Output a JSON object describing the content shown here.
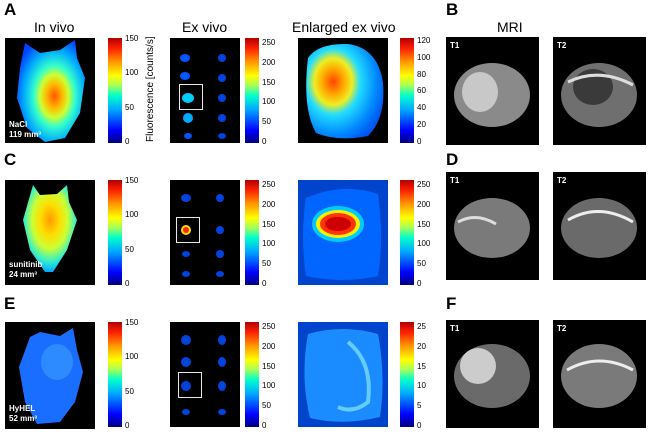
{
  "panels": {
    "A": "A",
    "B": "B",
    "C": "C",
    "D": "D",
    "E": "E",
    "F": "F"
  },
  "headers": {
    "in_vivo": "In vivo",
    "ex_vivo": "Ex vivo",
    "enlarged": "Enlarged ex vivo",
    "mri": "MRI"
  },
  "axis_label": "Fluorescence [counts/s]",
  "rows": [
    {
      "caption_line1": "NaCl",
      "caption_line2": "119 mm³",
      "invivo_ticks": [
        "150",
        "100",
        "50",
        "0"
      ],
      "exvivo_ticks": [
        "250",
        "200",
        "150",
        "100",
        "50",
        "0"
      ],
      "enlarged_ticks": [
        "120",
        "100",
        "80",
        "60",
        "40",
        "20",
        "0"
      ],
      "mri_t1": "T1",
      "mri_t2": "T2"
    },
    {
      "caption_line1": "sunitinib",
      "caption_line2": "24 mm³",
      "invivo_ticks": [
        "150",
        "100",
        "50",
        "0"
      ],
      "exvivo_ticks": [
        "250",
        "200",
        "150",
        "100",
        "50",
        "0"
      ],
      "enlarged_ticks": [
        "250",
        "200",
        "150",
        "100",
        "50",
        "0"
      ],
      "mri_t1": "T1",
      "mri_t2": "T2"
    },
    {
      "caption_line1": "HyHEL",
      "caption_line2": "52 mm³",
      "invivo_ticks": [
        "150",
        "100",
        "50",
        "0"
      ],
      "exvivo_ticks": [
        "250",
        "200",
        "150",
        "100",
        "50",
        "0"
      ],
      "enlarged_ticks": [
        "25",
        "20",
        "15",
        "10",
        "5",
        "0"
      ],
      "mri_t1": "T1",
      "mri_t2": "T2"
    }
  ]
}
